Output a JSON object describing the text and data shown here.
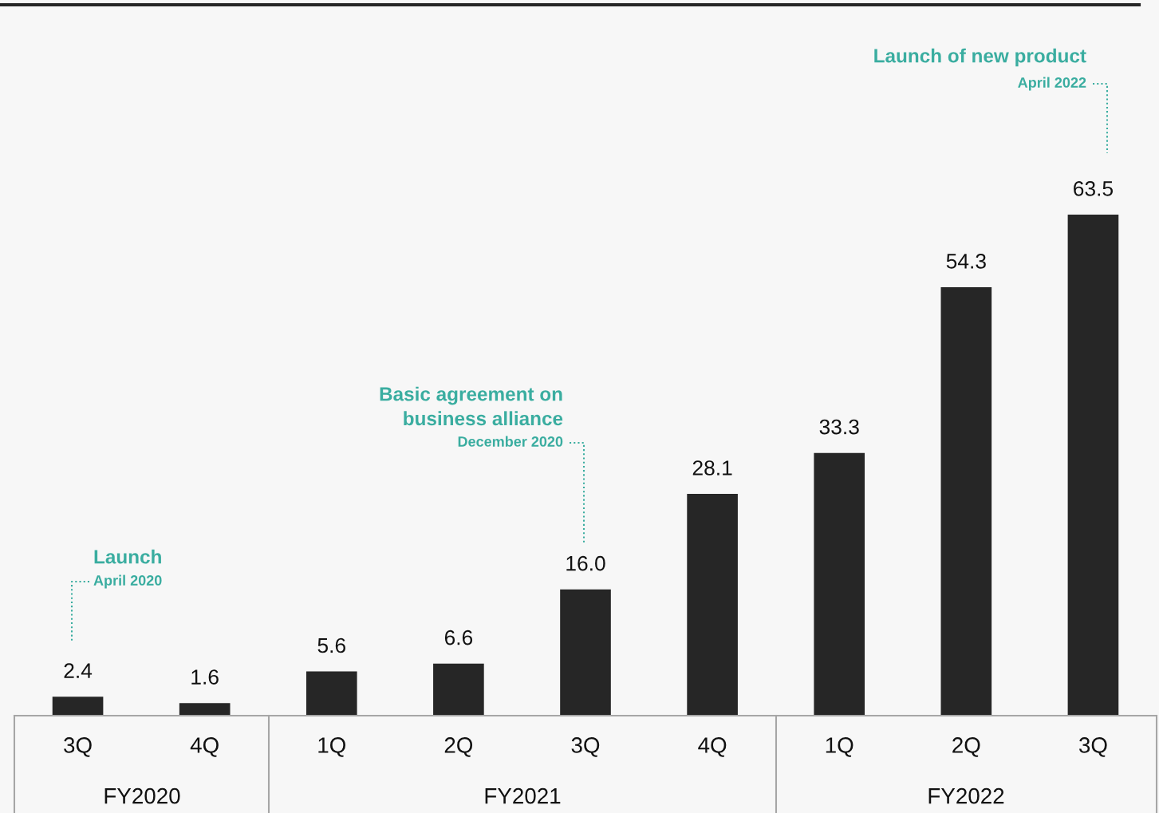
{
  "chart_data": {
    "type": "bar",
    "categories": [
      "3Q",
      "4Q",
      "1Q",
      "2Q",
      "3Q",
      "4Q",
      "1Q",
      "2Q",
      "3Q"
    ],
    "values": [
      2.4,
      1.6,
      5.6,
      6.6,
      16.0,
      28.1,
      33.3,
      54.3,
      63.5
    ],
    "value_labels": [
      "2.4",
      "1.6",
      "5.6",
      "6.6",
      "16.0",
      "28.1",
      "33.3",
      "54.3",
      "63.5"
    ],
    "color": "#262626",
    "annotations": [
      "Launch",
      "April 2020",
      "Basic agreement on\nbusiness alliance",
      "December 2020",
      "Launch of new product",
      "April 2022",
      "FY2020",
      "FY2021",
      "FY2022"
    ]
  }
}
